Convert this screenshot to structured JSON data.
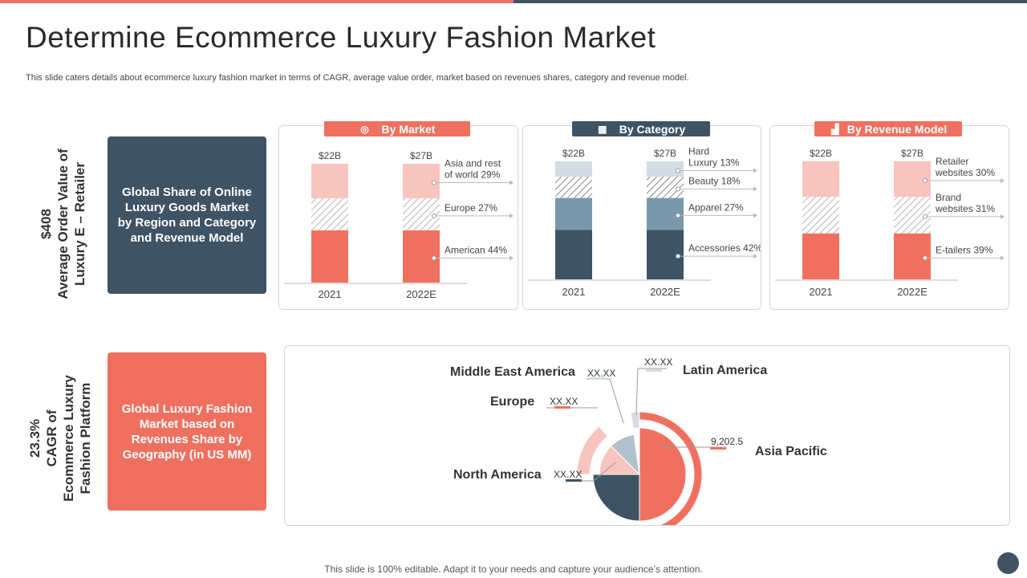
{
  "page": {
    "title": "Determine Ecommerce Luxury Fashion Market",
    "subtitle": "This slide caters details about ecommerce luxury fashion market in terms of CAGR,  average value order,  market based on revenues shares, category and revenue model.",
    "footer": "This slide is 100% editable. Adapt it to your needs and capture your audience’s attention."
  },
  "left_top": {
    "value": "$408",
    "label_line1": "Average Order Value of",
    "label_line2": "Luxury E – Retailer",
    "box_text": "Global Share of Online Luxury Goods Market by Region and Category and Revenue Model"
  },
  "left_bottom": {
    "value": "23.3%",
    "label_line1": "CAGR of",
    "label_line2": "Ecommerce Luxury",
    "label_line3": "Fashion Platform",
    "box_text": "Global Luxury Fashion Market based on Revenues Share by Geography (in US MM)"
  },
  "colors": {
    "coral": "#f07060",
    "navy": "#3e5465",
    "pink": "#f8c4be",
    "steel": "#7a98ab",
    "lightsteel": "#d2dde4"
  },
  "chart_data": [
    {
      "type": "bar",
      "title": "By Market",
      "icon": "target-icon",
      "categories": [
        "2021",
        "2022E"
      ],
      "totals": [
        "$22B",
        "$27B"
      ],
      "series": [
        {
          "name": "American 44%",
          "values": [
            44,
            44
          ]
        },
        {
          "name": "Europe 27%",
          "values": [
            27,
            27
          ]
        },
        {
          "name": "Asia and rest of world 29%",
          "values": [
            29,
            29
          ]
        }
      ]
    },
    {
      "type": "bar",
      "title": "By Category",
      "icon": "grid-icon",
      "categories": [
        "2021",
        "2022E"
      ],
      "totals": [
        "$22B",
        "$27B"
      ],
      "series": [
        {
          "name": "Accessories 42%",
          "values": [
            42,
            42
          ]
        },
        {
          "name": "Apparel 27%",
          "values": [
            27,
            27
          ]
        },
        {
          "name": "Beauty 18%",
          "values": [
            18,
            18
          ]
        },
        {
          "name": "Hard Luxury 13%",
          "values": [
            13,
            13
          ]
        }
      ]
    },
    {
      "type": "bar",
      "title": "By Revenue Model",
      "icon": "bar-chart-icon",
      "categories": [
        "2021",
        "2022E"
      ],
      "totals": [
        "$22B",
        "$27B"
      ],
      "series": [
        {
          "name": "E-tailers 39%",
          "values": [
            39,
            39
          ]
        },
        {
          "name": "Brand websites 31%",
          "values": [
            31,
            31
          ]
        },
        {
          "name": "Retailer websites 30%",
          "values": [
            30,
            30
          ]
        }
      ]
    },
    {
      "type": "pie",
      "slices": [
        {
          "label": "Asia Pacific",
          "value_label": "9,202.5"
        },
        {
          "label": "North America",
          "value_label": "XX.XX"
        },
        {
          "label": "Europe",
          "value_label": "XX.XX"
        },
        {
          "label": "Middle East America",
          "value_label": "XX.XX"
        },
        {
          "label": "Latin America",
          "value_label": "XX.XX"
        }
      ]
    }
  ]
}
